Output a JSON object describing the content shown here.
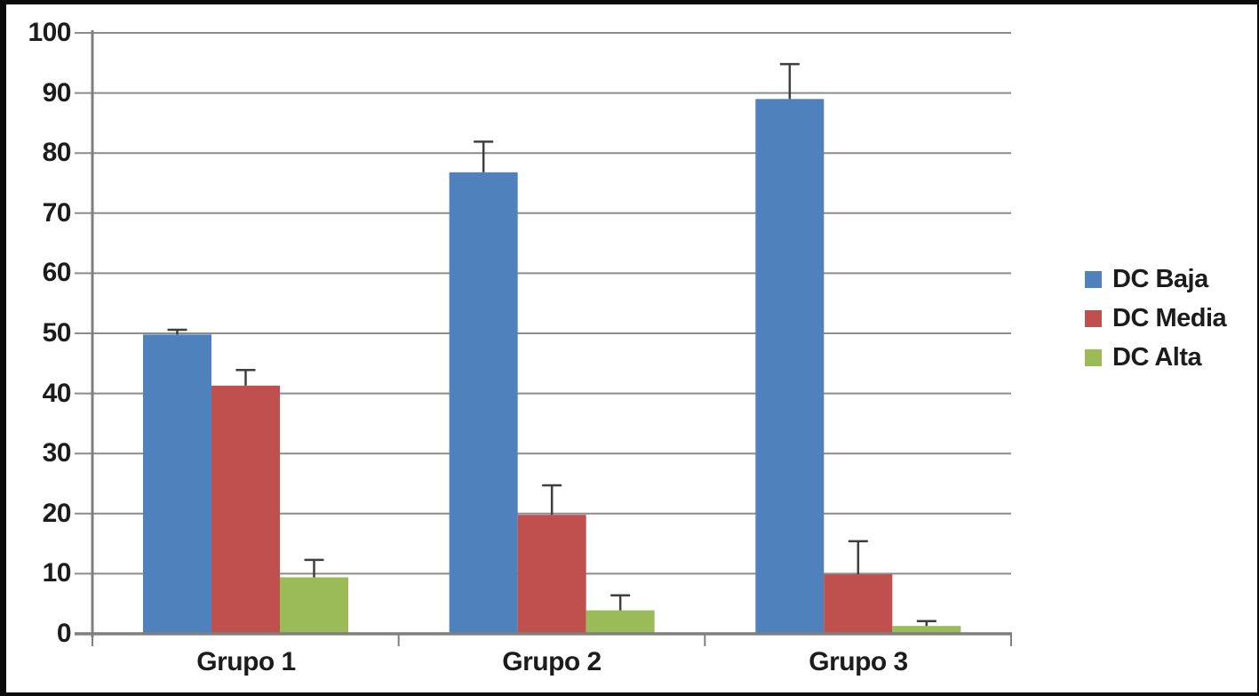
{
  "chart_data": {
    "type": "bar",
    "title": "",
    "xlabel": "",
    "ylabel": "",
    "categories": [
      "Grupo 1",
      "Grupo 2",
      "Grupo 3"
    ],
    "series": [
      {
        "name": "DC Baja",
        "color": "#4F81BD",
        "values": [
          49.8,
          76.8,
          89.0
        ],
        "errors_plus": [
          0.8,
          5.1,
          5.8
        ]
      },
      {
        "name": "DC Media",
        "color": "#C0504D",
        "values": [
          41.3,
          19.8,
          9.9
        ],
        "errors_plus": [
          2.6,
          4.9,
          5.5
        ]
      },
      {
        "name": "DC Alta",
        "color": "#9BBB59",
        "values": [
          9.4,
          3.9,
          1.3
        ],
        "errors_plus": [
          2.9,
          2.5,
          0.8
        ]
      }
    ],
    "ylim": [
      0,
      100
    ],
    "y_ticks": [
      "0",
      "10",
      "20",
      "30",
      "40",
      "50",
      "60",
      "70",
      "80",
      "90",
      "100"
    ],
    "grid": "horizontal",
    "legend_position": "right"
  },
  "colors": {
    "gridline": "#8C8C8C",
    "axis": "#7F7F7F",
    "error_bar": "#3F3F3F",
    "text": "#1C1C1C",
    "background": "#FFFFFF",
    "border": "#0B0B0B"
  }
}
